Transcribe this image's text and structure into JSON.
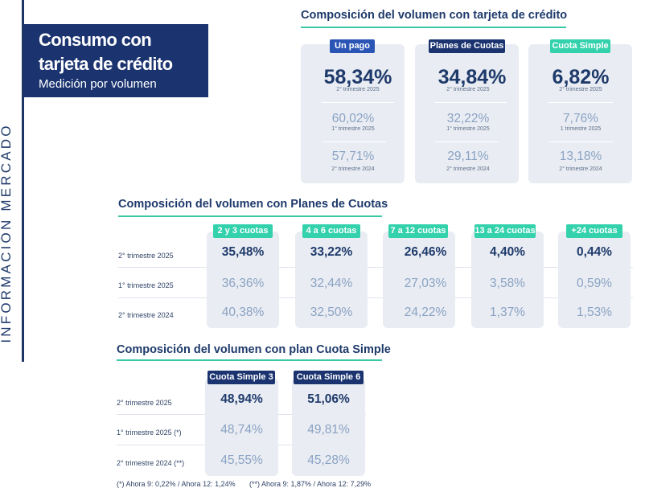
{
  "side_label": "INFORMACIÓN MERCADO",
  "title": {
    "line1": "Consumo con",
    "line2": "tarjeta de crédito",
    "subtitle": "Medición por volumen"
  },
  "credit": {
    "title": "Composición del volumen con tarjeta de crédito",
    "cards": [
      {
        "badge": "Un pago",
        "badge_color": "#2a55b5",
        "main": "58,34%",
        "main_period": "2° trimestre 2025",
        "v2": "60,02%",
        "p2": "1° trimestre 2025",
        "v3": "57,71%",
        "p3": "2° trimestre 2024"
      },
      {
        "badge": "Planes de Cuotas",
        "badge_color": "#1b3470",
        "main": "34,84%",
        "main_period": "2° trimestre 2025",
        "v2": "32,22%",
        "p2": "1° trimestre 2025",
        "v3": "29,11%",
        "p3": "2° trimestre 2024"
      },
      {
        "badge": "Cuota Simple",
        "badge_color": "#33d1ac",
        "main": "6,82%",
        "main_period": "2° trimestre 2025",
        "v2": "7,76%",
        "p2": "1 trimestre 2025",
        "v3": "13,18%",
        "p3": "2° trimestre 2024"
      }
    ]
  },
  "plans": {
    "title": "Composición del volumen con Planes de Cuotas",
    "rows": [
      "2° trimestre 2025",
      "1° trimestre 2025",
      "2° trimestre 2024"
    ],
    "columns": [
      {
        "label": "2 y 3 cuotas",
        "values": [
          "35,48%",
          "36,36%",
          "40,38%"
        ]
      },
      {
        "label": "4 a 6 cuotas",
        "values": [
          "33,22%",
          "32,44%",
          "32,50%"
        ]
      },
      {
        "label": "7 a 12 cuotas",
        "values": [
          "26,46%",
          "27,03%",
          "24,22%"
        ]
      },
      {
        "label": "13 a 24 cuotas",
        "values": [
          "4,40%",
          "3,58%",
          "1,37%"
        ]
      },
      {
        "label": "+24 cuotas",
        "values": [
          "0,44%",
          "0,59%",
          "1,53%"
        ]
      }
    ]
  },
  "simple": {
    "title": "Composición del volumen con plan Cuota Simple",
    "rows": [
      "2° trimestre 2025",
      "1° trimestre 2025 (*)",
      "2° trimestre 2024 (**)"
    ],
    "columns": [
      {
        "label": "Cuota Simple 3",
        "values": [
          "48,94%",
          "48,74%",
          "45,55%"
        ]
      },
      {
        "label": "Cuota Simple 6",
        "values": [
          "51,06%",
          "49,81%",
          "45,28%"
        ]
      }
    ],
    "footnote1": "(*) Ahora 9: 0,22% / Ahora 12: 1,24%",
    "footnote2": "(**) Ahora 9: 1,87% / Ahora 12: 7,29%"
  }
}
